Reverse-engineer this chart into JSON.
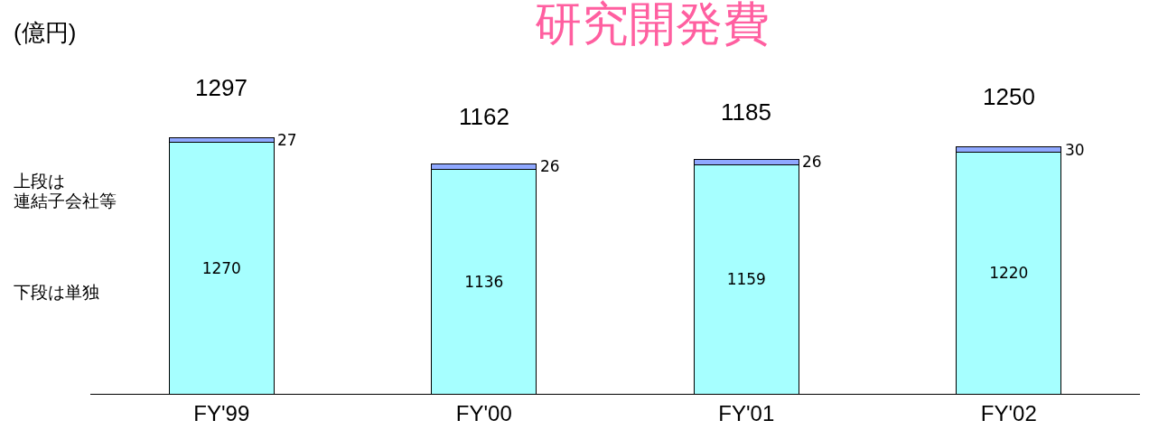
{
  "chart_data": {
    "type": "bar",
    "title": "研究開発費",
    "ylabel": "(億円)",
    "stacked": true,
    "data_labels": true,
    "categories": [
      "FY'99",
      "FY'00",
      "FY'01",
      "FY'02"
    ],
    "series": [
      {
        "color": "#a6ffff",
        "values": [
          1270,
          1136,
          1159,
          1220
        ]
      },
      {
        "color": "#8fa8ff",
        "values": [
          27,
          26,
          26,
          30
        ]
      }
    ],
    "totals": [
      "1297",
      "1162",
      "1185",
      "1250"
    ],
    "annotations": [
      "上段は",
      "連結子会社等",
      "下段は単独"
    ]
  }
}
